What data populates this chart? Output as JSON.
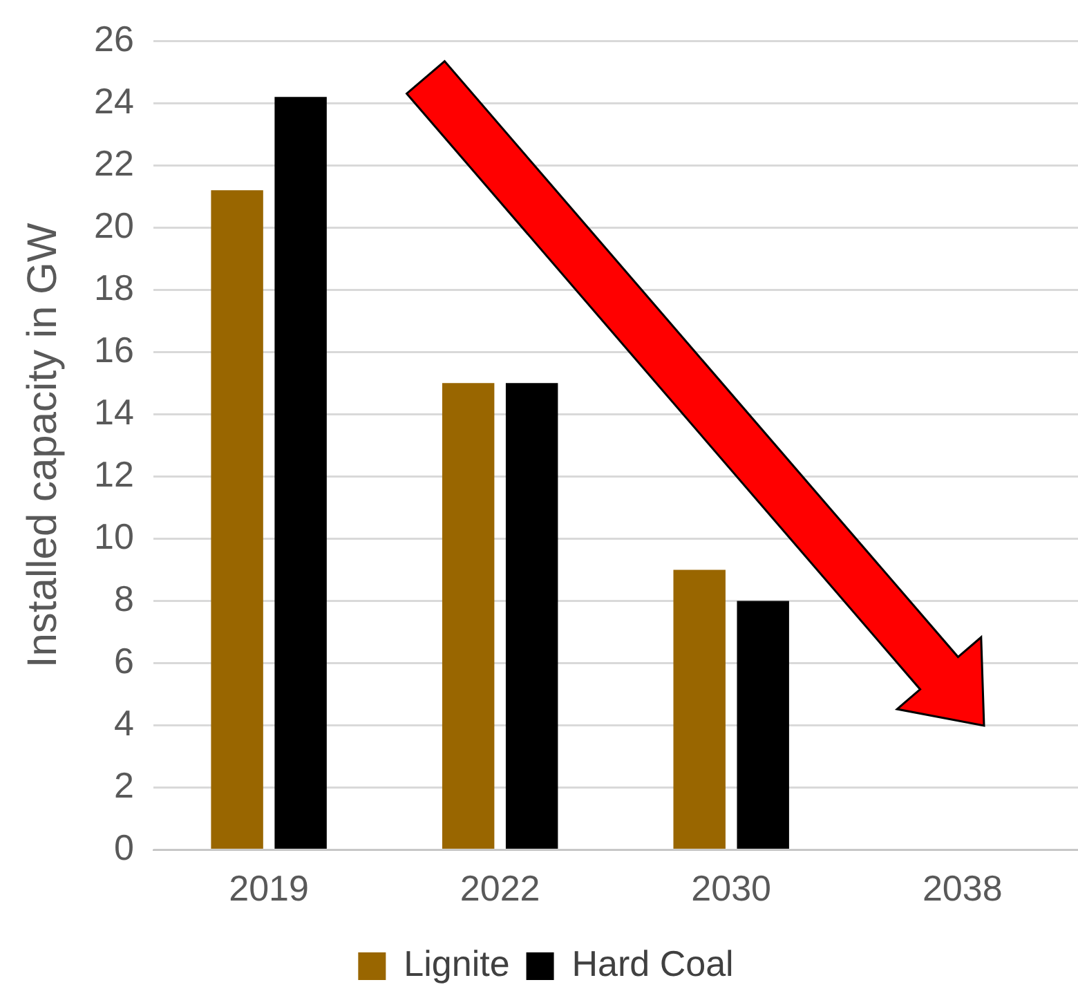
{
  "chart_data": {
    "type": "bar",
    "ylabel": "Installed capacity in GW",
    "categories": [
      "2019",
      "2022",
      "2030",
      "2038"
    ],
    "series": [
      {
        "name": "Lignite",
        "color": "#996600",
        "values": [
          21.2,
          15,
          9,
          0
        ]
      },
      {
        "name": "Hard Coal",
        "color": "#000000",
        "values": [
          24.2,
          15,
          8,
          0
        ]
      }
    ],
    "ylim": [
      0,
      26
    ],
    "yticks": [
      0,
      2,
      4,
      6,
      8,
      10,
      12,
      14,
      16,
      18,
      20,
      22,
      24,
      26
    ],
    "grid": "y",
    "legend": "bottom"
  }
}
